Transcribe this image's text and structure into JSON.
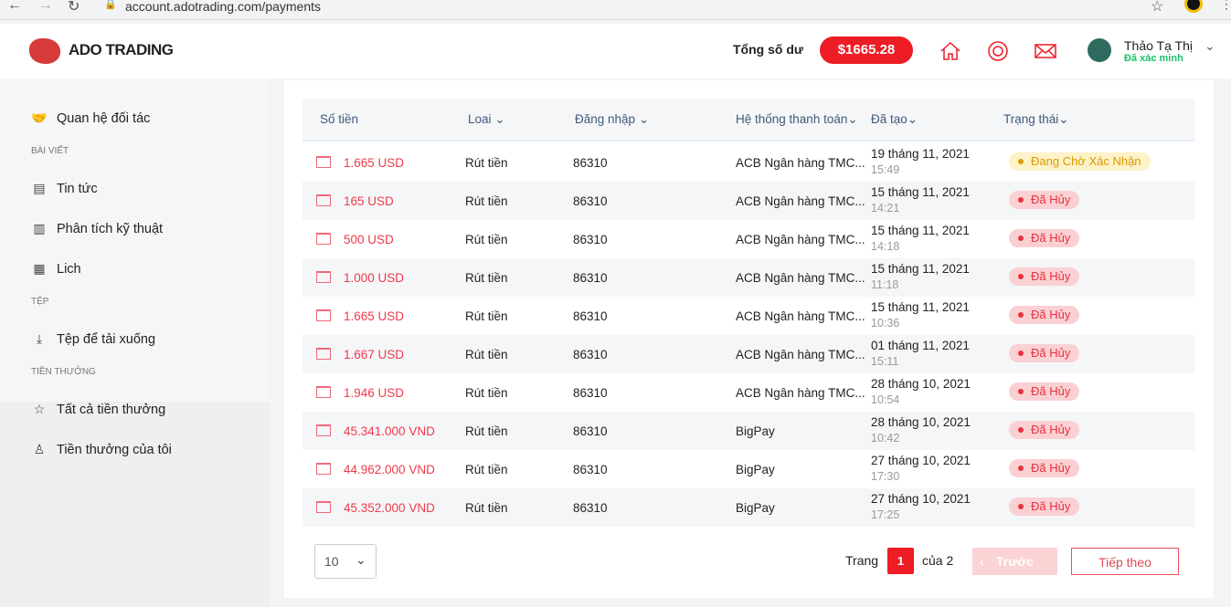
{
  "browser": {
    "url": "account.adotrading.com/payments"
  },
  "header": {
    "logo": "ADO TRADING",
    "balance_label": "Tổng số dư",
    "balance": "$1665.28",
    "user_name": "Thảo Tạ Thị",
    "user_status": "Đã xác minh",
    "accent": "#ee1c25"
  },
  "sidebar": {
    "items": [
      {
        "type": "item",
        "label": "Quan hệ đối tác",
        "icon": "handshake-icon"
      },
      {
        "type": "header",
        "label": "BÀI VIẾT"
      },
      {
        "type": "item",
        "label": "Tin tức",
        "icon": "newspaper-icon"
      },
      {
        "type": "item",
        "label": "Phân tích kỹ thuật",
        "icon": "analysis-icon"
      },
      {
        "type": "item",
        "label": "Lich",
        "icon": "calendar-icon"
      },
      {
        "type": "header",
        "label": "TỆP"
      },
      {
        "type": "item",
        "label": "Tệp để tải xuống",
        "icon": "download-icon"
      },
      {
        "type": "header",
        "label": "TIỀN THƯỞNG"
      },
      {
        "type": "item",
        "label": "Tất cả tiền thưởng",
        "icon": "star-icon"
      },
      {
        "type": "item",
        "label": "Tiền thưởng của tôi",
        "icon": "user-bonus-icon"
      }
    ]
  },
  "table": {
    "columns": [
      "Số tiền",
      "Loai",
      "Đăng nhập",
      "Hệ thống thanh toán",
      "Đã tạo",
      "Trạng thái"
    ],
    "rows": [
      {
        "amount": "1.665 USD",
        "type": "Rút tiền",
        "login": "86310",
        "system": "ACB Ngân hàng TMC...",
        "date": "19 tháng 11, 2021",
        "time": "15:49",
        "status": "Đang Chờ Xác Nhận",
        "status_kind": "pending"
      },
      {
        "amount": "165 USD",
        "type": "Rút tiền",
        "login": "86310",
        "system": "ACB Ngân hàng TMC...",
        "date": "15 tháng 11, 2021",
        "time": "14:21",
        "status": "Đã Hủy",
        "status_kind": "cancel"
      },
      {
        "amount": "500 USD",
        "type": "Rút tiền",
        "login": "86310",
        "system": "ACB Ngân hàng TMC...",
        "date": "15 tháng 11, 2021",
        "time": "14:18",
        "status": "Đã Hủy",
        "status_kind": "cancel"
      },
      {
        "amount": "1.000 USD",
        "type": "Rút tiền",
        "login": "86310",
        "system": "ACB Ngân hàng TMC...",
        "date": "15 tháng 11, 2021",
        "time": "11:18",
        "status": "Đã Hủy",
        "status_kind": "cancel"
      },
      {
        "amount": "1.665 USD",
        "type": "Rút tiền",
        "login": "86310",
        "system": "ACB Ngân hàng TMC...",
        "date": "15 tháng 11, 2021",
        "time": "10:36",
        "status": "Đã Hủy",
        "status_kind": "cancel"
      },
      {
        "amount": "1.667 USD",
        "type": "Rút tiền",
        "login": "86310",
        "system": "ACB Ngân hàng TMC...",
        "date": "01 tháng 11, 2021",
        "time": "15:11",
        "status": "Đã Hủy",
        "status_kind": "cancel"
      },
      {
        "amount": "1.946 USD",
        "type": "Rút tiền",
        "login": "86310",
        "system": "ACB Ngân hàng TMC...",
        "date": "28 tháng 10, 2021",
        "time": "10:54",
        "status": "Đã Hủy",
        "status_kind": "cancel"
      },
      {
        "amount": "45.341.000 VND",
        "type": "Rút tiền",
        "login": "86310",
        "system": "BigPay",
        "date": "28 tháng 10, 2021",
        "time": "10:42",
        "status": "Đã Hủy",
        "status_kind": "cancel"
      },
      {
        "amount": "44.962.000 VND",
        "type": "Rút tiền",
        "login": "86310",
        "system": "BigPay",
        "date": "27 tháng 10, 2021",
        "time": "17:30",
        "status": "Đã Hủy",
        "status_kind": "cancel"
      },
      {
        "amount": "45.352.000 VND",
        "type": "Rút tiền",
        "login": "86310",
        "system": "BigPay",
        "date": "27 tháng 10, 2021",
        "time": "17:25",
        "status": "Đã Hủy",
        "status_kind": "cancel"
      }
    ]
  },
  "pagination": {
    "page_size": "10",
    "page_label": "Trang",
    "current_page": "1",
    "of_label": "của 2",
    "prev": "Trước",
    "next": "Tiếp theo"
  }
}
